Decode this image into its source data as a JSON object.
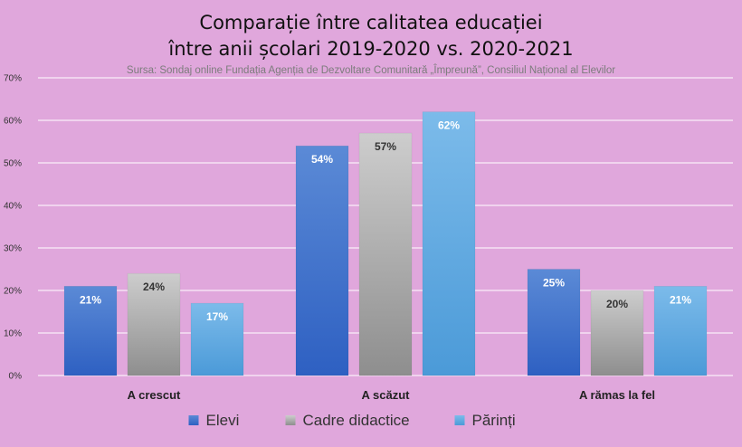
{
  "chart_data": {
    "type": "bar",
    "title_line1": "Comparație între calitatea educației",
    "title_line2": "între anii școlari 2019-2020 vs. 2020-2021",
    "subtitle": "Sursa: Sondaj online Fundația Agenția de Dezvoltare Comunitară „Împreună”, Consiliul Național al Elevilor",
    "categories": [
      "A crescut",
      "A scăzut",
      "A rămas la fel"
    ],
    "series": [
      {
        "name": "Elevi",
        "values": [
          21,
          54,
          25
        ],
        "labels": [
          "21%",
          "54%",
          "25%"
        ],
        "color_top": "#5b8ad6",
        "color_bottom": "#2e60c2",
        "label_color": "#ffffff"
      },
      {
        "name": "Cadre didactice",
        "values": [
          24,
          57,
          20
        ],
        "labels": [
          "24%",
          "57%",
          "20%"
        ],
        "color_top": "#cdcdcd",
        "color_bottom": "#8e8e8e",
        "label_color": "#333333"
      },
      {
        "name": "Părinți",
        "values": [
          17,
          62,
          21
        ],
        "labels": [
          "17%",
          "62%",
          "21%"
        ],
        "color_top": "#7cbbea",
        "color_bottom": "#4b9ad8",
        "label_color": "#ffffff"
      }
    ],
    "yticks": [
      "0%",
      "10%",
      "20%",
      "30%",
      "40%",
      "50%",
      "60%",
      "70%"
    ],
    "ylim": [
      0,
      70
    ],
    "grid": true,
    "grid_color": "#ffffff",
    "legend_position": "bottom"
  }
}
